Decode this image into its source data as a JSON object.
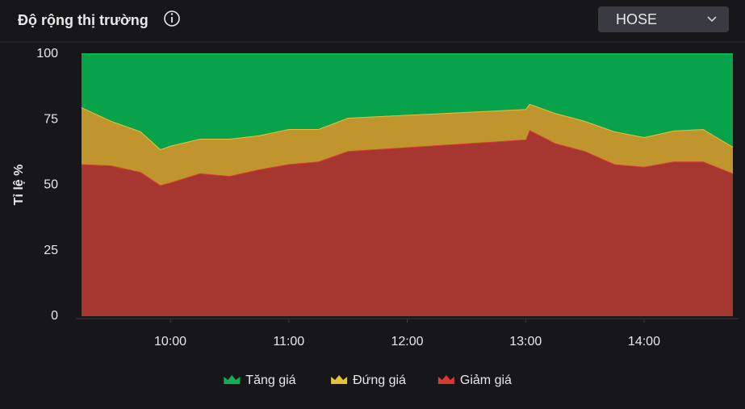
{
  "header": {
    "title": "Độ rộng thị trường",
    "dropdown": "HOSE"
  },
  "chart_data": {
    "type": "stacked-area",
    "ylabel": "Tỉ lệ %",
    "x": [
      555,
      570,
      585,
      595,
      600,
      615,
      630,
      645,
      660,
      675,
      690,
      780,
      782,
      795,
      810,
      825,
      840,
      855,
      870,
      885
    ],
    "xlim": [
      555,
      885
    ],
    "xticks": [
      {
        "value": 600,
        "label": "10:00"
      },
      {
        "value": 660,
        "label": "11:00"
      },
      {
        "value": 720,
        "label": "12:00"
      },
      {
        "value": 780,
        "label": "13:00"
      },
      {
        "value": 840,
        "label": "14:00"
      }
    ],
    "ylim": [
      0,
      100
    ],
    "yticks": [
      0,
      25,
      50,
      75,
      100
    ],
    "grid": false,
    "legend": "bottom",
    "series": [
      {
        "name": "Tăng giá",
        "color": "#08a24a",
        "line": "#0fb050",
        "values": [
          20.3,
          25.5,
          29.5,
          36.3,
          35,
          32.3,
          32.3,
          31,
          28.6,
          28.6,
          24.3,
          21,
          19,
          22.5,
          25.5,
          29.5,
          31.7,
          29.2,
          28.6,
          35.4
        ]
      },
      {
        "name": "Đứng giá",
        "color": "#c0952e",
        "line": "#e6c23a",
        "values": [
          21.7,
          17,
          15.5,
          13.7,
          14,
          13.2,
          14.2,
          13,
          13.4,
          12.4,
          12.7,
          11.6,
          10,
          11.5,
          11.5,
          12.5,
          11.3,
          11.8,
          12.4,
          10.1
        ]
      },
      {
        "name": "Giảm giá",
        "color": "#a63630",
        "line": "#d93a30",
        "values": [
          58,
          57.5,
          55,
          50,
          51,
          54.5,
          53.5,
          56,
          58,
          59,
          63,
          67.4,
          71,
          66,
          63,
          58,
          57,
          59,
          59,
          54.5
        ]
      }
    ]
  }
}
